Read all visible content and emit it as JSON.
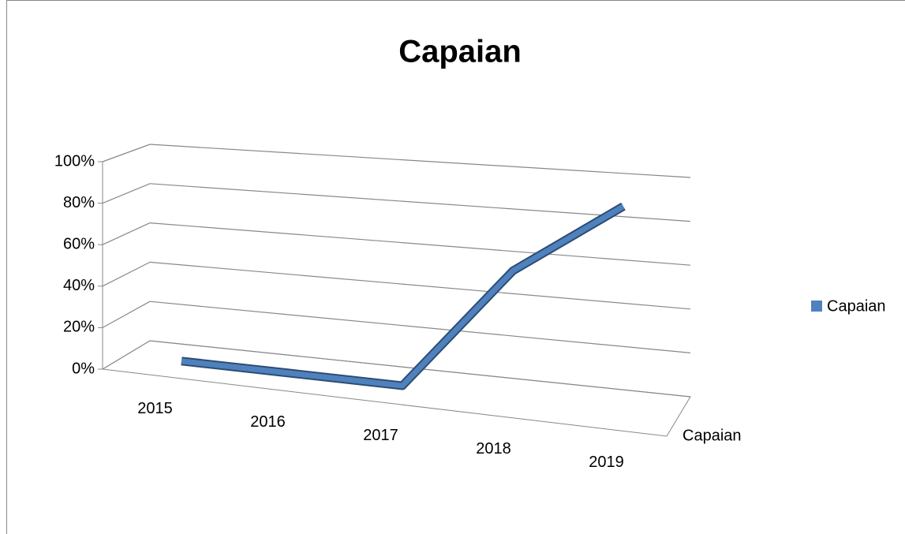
{
  "chart_data": {
    "type": "line3d",
    "title": "Capaian",
    "categories": [
      "2015",
      "2016",
      "2017",
      "2018",
      "2019"
    ],
    "series": [
      {
        "name": "Capaian",
        "color": "#4f81bd",
        "values": [
          0,
          0,
          0,
          60,
          95
        ]
      }
    ],
    "ylim": [
      0,
      100
    ],
    "yticks": [
      {
        "value": 0,
        "label": "0%"
      },
      {
        "value": 20,
        "label": "20%"
      },
      {
        "value": 40,
        "label": "40%"
      },
      {
        "value": 60,
        "label": "60%"
      },
      {
        "value": 80,
        "label": "80%"
      },
      {
        "value": 100,
        "label": "100%"
      }
    ],
    "grid": true,
    "legend": "right"
  }
}
